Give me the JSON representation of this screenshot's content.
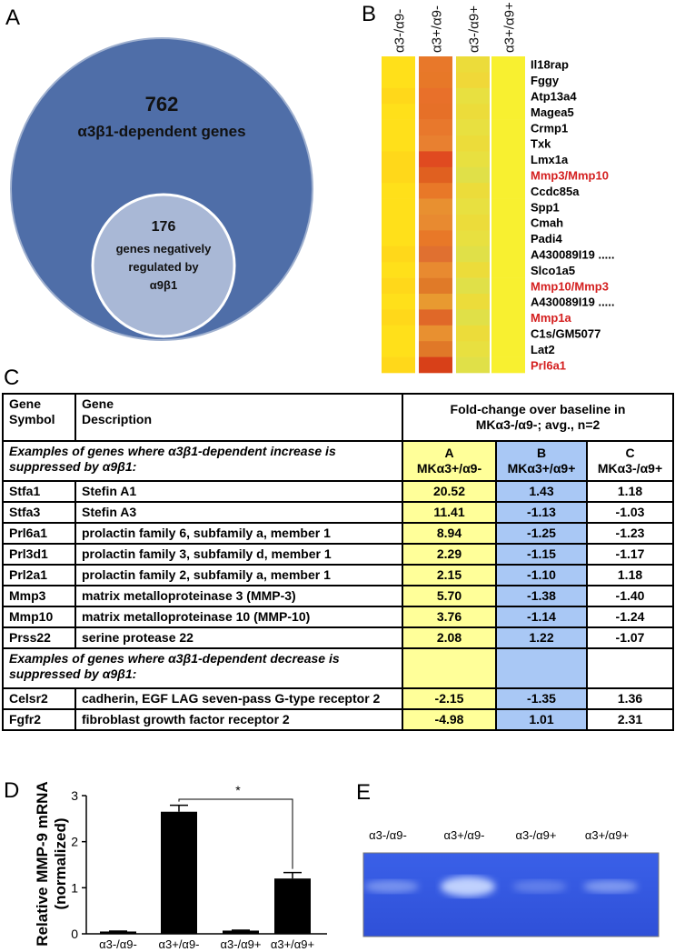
{
  "panel_a": {
    "label": "A",
    "outer_count": 762,
    "outer_text": "α3β1-dependent genes",
    "inner_count": 176,
    "inner_lines": [
      "genes negatively",
      "regulated by",
      "α9β1"
    ]
  },
  "panel_b": {
    "label": "B",
    "columns": [
      "α3-/α9-",
      "α3+/α9-",
      "α3-/α9+",
      "α3+/α9+"
    ],
    "rows": [
      {
        "gene": "Il18rap",
        "label_color": "#000000",
        "colors": [
          "#ffe01a",
          "#e8782a",
          "#ecdc3a",
          "#f8f030"
        ]
      },
      {
        "gene": "Fggy",
        "label_color": "#000000",
        "colors": [
          "#ffe01a",
          "#e77828",
          "#f0d838",
          "#f8f030"
        ]
      },
      {
        "gene": "Atp13a4",
        "label_color": "#000000",
        "colors": [
          "#ffd81a",
          "#e8702a",
          "#e8e040",
          "#f8f030"
        ]
      },
      {
        "gene": "Magea5",
        "label_color": "#000000",
        "colors": [
          "#ffe01a",
          "#e67028",
          "#ecdc3a",
          "#f8f030"
        ]
      },
      {
        "gene": "Crmp1",
        "label_color": "#000000",
        "colors": [
          "#ffe01a",
          "#e8782c",
          "#e8e040",
          "#f8f030"
        ]
      },
      {
        "gene": "Txk",
        "label_color": "#000000",
        "colors": [
          "#ffe01a",
          "#e88030",
          "#ecdc3a",
          "#f8f030"
        ]
      },
      {
        "gene": "Lmx1a",
        "label_color": "#000000",
        "colors": [
          "#ffd81a",
          "#e04a20",
          "#e8e040",
          "#f8f030"
        ]
      },
      {
        "gene": "Mmp3/Mmp10",
        "label_color": "#d42020",
        "colors": [
          "#ffd81a",
          "#e06020",
          "#e0e048",
          "#f8f030"
        ]
      },
      {
        "gene": "Ccdc85a",
        "label_color": "#000000",
        "colors": [
          "#ffe01a",
          "#e87828",
          "#ecdc3a",
          "#f8f030"
        ]
      },
      {
        "gene": "Spp1",
        "label_color": "#000000",
        "colors": [
          "#ffe01a",
          "#e89030",
          "#e8e040",
          "#f8f030"
        ]
      },
      {
        "gene": "Cmah",
        "label_color": "#000000",
        "colors": [
          "#ffe01a",
          "#e88a30",
          "#ecdc3a",
          "#f8f030"
        ]
      },
      {
        "gene": "Padi4",
        "label_color": "#000000",
        "colors": [
          "#ffe01a",
          "#e87828",
          "#e8e040",
          "#f8f030"
        ]
      },
      {
        "gene": "A430089I19 .....",
        "label_color": "#000000",
        "colors": [
          "#ffd81a",
          "#e07030",
          "#e0e048",
          "#f8f030"
        ]
      },
      {
        "gene": "Slco1a5",
        "label_color": "#000000",
        "colors": [
          "#ffe01a",
          "#e88a30",
          "#ecdc3a",
          "#f8f030"
        ]
      },
      {
        "gene": "Mmp10/Mmp3",
        "label_color": "#d42020",
        "colors": [
          "#ffd81a",
          "#e07a28",
          "#e0e048",
          "#f8f030"
        ]
      },
      {
        "gene": "A430089I19 .....",
        "label_color": "#000000",
        "colors": [
          "#ffe01a",
          "#e89a30",
          "#ecdc3a",
          "#f8f030"
        ]
      },
      {
        "gene": "Mmp1a",
        "label_color": "#d42020",
        "colors": [
          "#ffd81a",
          "#e06828",
          "#e0e048",
          "#f8f030"
        ]
      },
      {
        "gene": "C1s/GM5077",
        "label_color": "#000000",
        "colors": [
          "#ffe01a",
          "#e89030",
          "#ecdc3a",
          "#f8f030"
        ]
      },
      {
        "gene": "Lat2",
        "label_color": "#000000",
        "colors": [
          "#ffe01a",
          "#e07828",
          "#e8e040",
          "#f8f030"
        ]
      },
      {
        "gene": "Prl6a1",
        "label_color": "#d42020",
        "colors": [
          "#ffd81a",
          "#d84018",
          "#e0e048",
          "#f8f030"
        ]
      }
    ]
  },
  "panel_c": {
    "label": "C",
    "headers": [
      [
        "Gene",
        "Symbol"
      ],
      [
        "Gene",
        "Description"
      ],
      [
        "Fold-change over baseline in",
        "MKα3-/α9-; avg., n=2"
      ]
    ],
    "sections": [
      {
        "note": "Examples of genes where α3β1-dependent increase is suppressed by α9β1:",
        "columns": [
          [
            "A",
            "MKα3+/α9-"
          ],
          [
            "B",
            "MKα3+/α9+"
          ],
          [
            "C",
            "MKα3-/α9+"
          ]
        ],
        "rows": [
          [
            "Stfa1",
            "Stefin A1",
            "20.52",
            "1.43",
            "1.18"
          ],
          [
            "Stfa3",
            "Stefin A3",
            "11.41",
            "-1.13",
            "-1.03"
          ],
          [
            "Prl6a1",
            "prolactin family 6, subfamily a, member 1",
            "8.94",
            "-1.25",
            "-1.23"
          ],
          [
            "Prl3d1",
            "prolactin family 3, subfamily d, member 1",
            "2.29",
            "-1.15",
            "-1.17"
          ],
          [
            "Prl2a1",
            "prolactin family 2, subfamily a, member 1",
            "2.15",
            "-1.10",
            "1.18"
          ],
          [
            "Mmp3",
            "matrix metalloproteinase 3 (MMP-3)",
            "5.70",
            "-1.38",
            "-1.40"
          ],
          [
            "Mmp10",
            "matrix metalloproteinase 10 (MMP-10)",
            "3.76",
            "-1.14",
            "-1.24"
          ],
          [
            "Prss22",
            "serine protease 22",
            "2.08",
            "1.22",
            "-1.07"
          ]
        ]
      },
      {
        "note": "Examples of genes where α3β1-dependent decrease is suppressed by α9β1:",
        "rows": [
          [
            "Celsr2",
            "cadherin, EGF LAG seven-pass G-type receptor 2",
            "-2.15",
            "-1.35",
            "1.36"
          ],
          [
            "Fgfr2",
            "fibroblast growth factor receptor 2",
            "-4.98",
            "1.01",
            "2.31"
          ]
        ]
      }
    ]
  },
  "chart_data": {
    "type": "bar",
    "panel_label": "D",
    "ylabel": [
      "Relative MMP-9 mRNA",
      "(normalized)"
    ],
    "categories": [
      "α3-/α9-",
      "α3+/α9-",
      "α3-/α9+",
      "α3+/α9+"
    ],
    "values": [
      0.05,
      2.65,
      0.07,
      1.2
    ],
    "errors": [
      0.01,
      0.14,
      0.01,
      0.13
    ],
    "ylim": [
      0,
      3
    ],
    "yticks": [
      0,
      1,
      2,
      3
    ],
    "color": "#000000",
    "significance": "*"
  },
  "panel_e": {
    "label": "E",
    "lanes": [
      "α3-/α9-",
      "α3+/α9-",
      "α3-/α9+",
      "α3+/α9+"
    ]
  }
}
